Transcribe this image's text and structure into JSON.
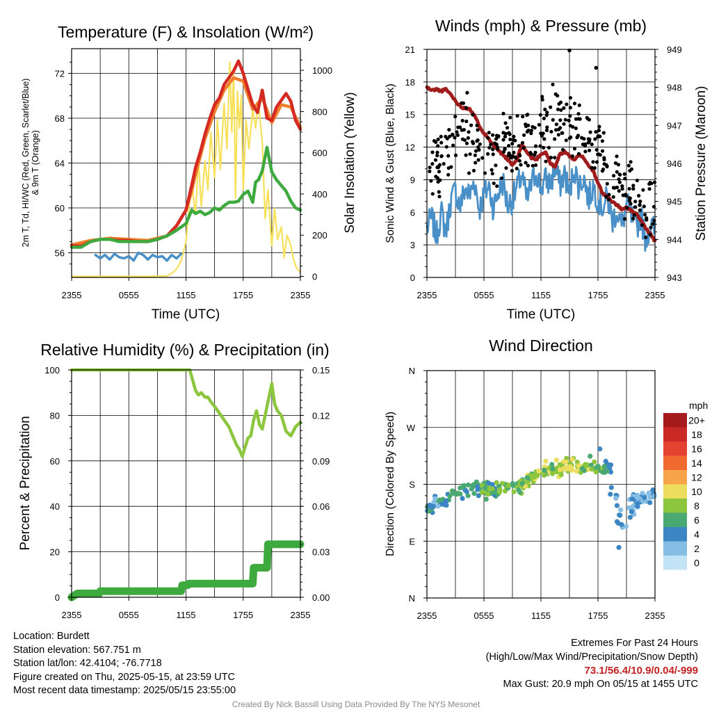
{
  "panels": {
    "temp": {
      "title": "Temperature (F) & Insolation (W/m²)",
      "ylabel_line1": "2m T, Td, HI/WC (Red, Green, Scarlet/Blue)",
      "ylabel_line2": "& 9m T (Orange)",
      "y2label": "Solar Insolation (Yellow)",
      "xlabel": "Time (UTC)"
    },
    "wind": {
      "title": "Winds (mph) & Pressure (mb)",
      "ylabel": "Sonic Wind & Gust (Blue, Black)",
      "y2label": "Station Pressure (Maroon)",
      "xlabel": "Time (UTC)"
    },
    "rh": {
      "title": "Relative Humidity (%) & Precipitation (in)",
      "ylabel": "Percent & Precipitation"
    },
    "dir": {
      "title": "Wind Direction",
      "ylabel": "Direction (Colored By Speed)",
      "legend_title": "mph"
    }
  },
  "footer": {
    "location": "Location: Burdett",
    "elevation": "Station elevation: 567.751 m",
    "latlon": "Station lat/lon: 42.4104; -76.7718",
    "created": "Figure created on Thu, 2025-05-15, at 23:59 UTC",
    "recent": "Most recent data timestamp: 2025/05/15 23:55:00",
    "extremes_title": "Extremes For Past 24 Hours",
    "extremes_sub": "(High/Low/Max Wind/Precipitation/Snow Depth)",
    "extremes_values": "73.1/56.4/10.9/0.04/-999",
    "max_gust": "Max Gust: 20.9 mph On 05/15 at 1455 UTC",
    "credit": "Created By Nick Bassill Using Data Provided By The NYS Mesonet"
  },
  "chart_data": [
    {
      "type": "line",
      "title": "Temperature (F) & Insolation (W/m2)",
      "xlabel": "Time (UTC)",
      "ylabel": "2m T, Td, HI/WC (Red, Green, Scarlet/Blue) & 9m T (Orange)",
      "y2label": "Solar Insolation (Yellow)",
      "x_ticks": [
        "2355",
        "0555",
        "1155",
        "1755",
        "2355"
      ],
      "x_hours": [
        0,
        3,
        6,
        9,
        12,
        15,
        18,
        21,
        24
      ],
      "xlim": [
        0,
        24
      ],
      "ylim": [
        53.8,
        74.2
      ],
      "y_ticks": [
        56,
        60,
        64,
        68,
        72
      ],
      "y2lim": [
        -5,
        1105
      ],
      "y2_ticks": [
        0,
        200,
        400,
        600,
        800,
        1000
      ],
      "series": [
        {
          "name": "2m T",
          "color": "#d42a22",
          "axis": "left",
          "x": [
            0,
            1,
            2,
            3,
            4,
            5,
            6,
            7,
            8,
            9,
            10,
            11,
            12,
            12.6,
            13,
            13.5,
            14,
            14.5,
            15,
            15.5,
            16,
            16.5,
            17,
            17.5,
            18,
            18.5,
            19,
            19.5,
            20,
            20.5,
            21,
            21.5,
            22,
            22.5,
            23,
            23.5,
            24
          ],
          "y": [
            56.6,
            56.6,
            57,
            57.2,
            57.2,
            57.1,
            57.1,
            57,
            57,
            57.2,
            57.5,
            58.4,
            59.8,
            62,
            63.6,
            65,
            66.6,
            68,
            69.2,
            69.8,
            71,
            71.6,
            72.2,
            73.1,
            72,
            70.6,
            69.2,
            68.5,
            70.5,
            68,
            67.8,
            69,
            69.6,
            70.2,
            69.5,
            67.8,
            67
          ]
        },
        {
          "name": "9m T",
          "color": "#f07f2b",
          "axis": "left",
          "x": [
            0,
            2,
            4,
            6,
            8,
            10,
            11,
            12,
            12.6,
            13,
            14,
            15,
            16,
            17,
            18,
            19,
            20,
            21,
            22,
            23,
            24
          ],
          "y": [
            56.7,
            57.1,
            57.3,
            57.2,
            57.1,
            57.5,
            58.4,
            59.8,
            61.5,
            63,
            66.2,
            68.6,
            70.5,
            71.6,
            71.3,
            68.8,
            69.8,
            67.6,
            69.2,
            69,
            67.2
          ]
        },
        {
          "name": "2m Td",
          "color": "#3eaa3e",
          "axis": "left",
          "x": [
            0,
            1,
            2,
            3,
            4,
            5,
            6,
            7,
            8,
            9,
            10,
            11,
            12,
            12.6,
            13,
            13.5,
            14,
            14.5,
            15,
            15.5,
            16,
            16.5,
            17,
            17.5,
            18,
            18.5,
            19,
            19.3,
            19.6,
            20,
            20.5,
            21,
            21.5,
            22,
            22.5,
            23,
            23.5,
            24
          ],
          "y": [
            56.5,
            56.5,
            57,
            57.2,
            57.2,
            57,
            57,
            57,
            57,
            57.2,
            57.5,
            58,
            58.6,
            59.8,
            59.5,
            59.7,
            59.4,
            59.6,
            60,
            59.8,
            60.2,
            60.5,
            60.5,
            60.6,
            61.2,
            61.5,
            60.5,
            62.3,
            62.5,
            63.3,
            65.4,
            63.2,
            62.5,
            62,
            61.5,
            60.6,
            60,
            59.8
          ]
        },
        {
          "name": "HI/WC",
          "color": "#4a90c8",
          "axis": "left",
          "x": [
            2.5,
            3,
            3.5,
            4,
            4.5,
            5,
            5.5,
            6,
            6.5,
            7,
            7.5,
            8,
            8.5,
            9,
            9.5,
            10,
            10.5,
            11,
            11.5
          ],
          "y": [
            55.8,
            55.5,
            55.8,
            55.4,
            55.9,
            55.6,
            55.5,
            55.7,
            55.3,
            56,
            55.8,
            55.4,
            55.8,
            55.6,
            55.7,
            55.3,
            55.8,
            55.5,
            55.9
          ]
        },
        {
          "name": "Insolation",
          "color": "#f7e15a",
          "axis": "right",
          "x": [
            0,
            2,
            4,
            6,
            8,
            10,
            10.5,
            11,
            11.5,
            12,
            12.3,
            12.6,
            13,
            13.3,
            13.6,
            14,
            14.3,
            14.6,
            15,
            15.3,
            15.6,
            16,
            16.3,
            16.6,
            16.8,
            17,
            17.2,
            17.4,
            17.6,
            17.8,
            18,
            18.3,
            18.6,
            19,
            19.3,
            19.6,
            20,
            20.3,
            20.6,
            21,
            21.3,
            21.6,
            22,
            22.3,
            22.6,
            23,
            23.3,
            23.6,
            24
          ],
          "y": [
            0,
            0,
            0,
            0,
            0,
            2,
            15,
            35,
            75,
            170,
            330,
            450,
            300,
            570,
            340,
            560,
            420,
            700,
            480,
            760,
            520,
            840,
            620,
            1040,
            700,
            1010,
            380,
            900,
            720,
            880,
            420,
            760,
            620,
            810,
            720,
            850,
            650,
            280,
            420,
            150,
            330,
            180,
            240,
            90,
            200,
            150,
            80,
            40,
            20
          ]
        }
      ]
    },
    {
      "type": "scatter",
      "title": "Winds (mph) & Pressure (mb)",
      "xlabel": "Time (UTC)",
      "ylabel": "Sonic Wind & Gust (Blue, Black)",
      "y2label": "Station Pressure (Maroon)",
      "x_ticks": [
        "2355",
        "0555",
        "1155",
        "1755",
        "2355"
      ],
      "xlim": [
        0,
        24
      ],
      "ylim": [
        0,
        21
      ],
      "y_ticks": [
        0,
        3,
        6,
        9,
        12,
        15,
        18,
        21
      ],
      "y2lim": [
        943,
        949
      ],
      "y2_ticks": [
        943,
        944,
        945,
        946,
        947,
        948,
        949
      ],
      "series": [
        {
          "name": "Sonic Wind",
          "color": "#4a90c8",
          "axis": "left",
          "x": [
            0,
            0.5,
            1,
            1.5,
            2,
            2.5,
            3,
            3.5,
            4,
            4.5,
            5,
            5.5,
            6,
            6.5,
            7,
            7.5,
            8,
            8.5,
            9,
            9.5,
            10,
            10.5,
            11,
            11.5,
            12,
            12.5,
            13,
            13.5,
            14,
            14.5,
            15,
            15.5,
            16,
            16.5,
            17,
            17.5,
            18,
            18.5,
            19,
            19.5,
            20,
            20.5,
            21,
            21.5,
            22,
            22.5,
            23,
            23.5,
            24
          ],
          "y": [
            4.5,
            5.5,
            3.8,
            6,
            4.2,
            7,
            8,
            6.5,
            8.2,
            7.5,
            9,
            6.3,
            7.5,
            8.5,
            6.4,
            7.8,
            8.8,
            6.6,
            7.2,
            8.2,
            9.5,
            7,
            8.5,
            9.8,
            8.2,
            9,
            8.6,
            10,
            8.5,
            9.6,
            7.6,
            10.2,
            8.3,
            9.3,
            7.2,
            8.4,
            7.2,
            6.5,
            7.3,
            5.2,
            6.2,
            4.6,
            6.8,
            5.6,
            4.4,
            5.8,
            3.5,
            4.8,
            4.3
          ]
        },
        {
          "name": "Pressure",
          "color": "#a01c1c",
          "axis": "right",
          "x": [
            0,
            0.5,
            1,
            1.5,
            2,
            2.5,
            3,
            3.5,
            4,
            4.5,
            5,
            5.5,
            6,
            6.5,
            7,
            7.5,
            8,
            8.5,
            9,
            9.5,
            10,
            10.5,
            11,
            11.5,
            12,
            12.5,
            13,
            13.5,
            14,
            14.5,
            15,
            15.5,
            16,
            16.5,
            17,
            17.5,
            18,
            18.5,
            19,
            19.5,
            20,
            20.5,
            21,
            21.5,
            22,
            22.5,
            23,
            23.5,
            24
          ],
          "y": [
            948.0,
            947.92,
            947.95,
            947.9,
            947.95,
            947.82,
            947.65,
            947.5,
            947.45,
            947.45,
            947.25,
            947.0,
            946.8,
            946.65,
            946.5,
            946.35,
            946.2,
            946.1,
            945.95,
            946.1,
            946.5,
            946.3,
            946.15,
            946.1,
            946.25,
            946.3,
            946.0,
            945.9,
            946.25,
            946.3,
            946.2,
            946.1,
            946.2,
            946.15,
            945.95,
            945.8,
            945.5,
            945.2,
            945.1,
            945.0,
            944.9,
            944.8,
            944.85,
            944.75,
            944.7,
            944.5,
            944.3,
            944.15,
            943.95
          ]
        },
        {
          "name": "Gust",
          "color": "#000000",
          "axis": "left",
          "seed": 17,
          "n": 340,
          "x": [
            0,
            1,
            2,
            3,
            4,
            5,
            6,
            7,
            8,
            9,
            10,
            11,
            12,
            13,
            14,
            15,
            16,
            17,
            18,
            19,
            20,
            21,
            22,
            23,
            24
          ],
          "mean": [
            9.5,
            10.5,
            11,
            13.5,
            13.5,
            12,
            11,
            10.5,
            12,
            12,
            12.5,
            12.5,
            13.5,
            14,
            14.5,
            14.5,
            13.5,
            13,
            12,
            10,
            9,
            8,
            7.5,
            6.5,
            6.5
          ],
          "spread": 2.6
        }
      ],
      "highlights": [
        {
          "x": 15.0,
          "y": 20.9
        },
        {
          "x": 17.8,
          "y": 19.3
        }
      ]
    },
    {
      "type": "line",
      "title": "Relative Humidity (%) & Precipitation (in)",
      "ylabel": "Percent & Precipitation",
      "x_ticks": [
        "2355",
        "0555",
        "1155",
        "1755",
        "2355"
      ],
      "xlim": [
        0,
        24
      ],
      "ylim": [
        0,
        100
      ],
      "y_ticks": [
        0,
        20,
        40,
        60,
        80,
        100
      ],
      "y2lim": [
        0,
        0.15
      ],
      "y2_ticks": [
        "0.00",
        "0.03",
        "0.06",
        "0.09",
        "0.12",
        "0.15"
      ],
      "series": [
        {
          "name": "RH",
          "color": "#8cc63e",
          "axis": "left",
          "x": [
            0,
            2,
            4,
            6,
            8,
            10,
            11,
            12,
            12.4,
            13,
            13.3,
            13.6,
            14,
            14.3,
            14.6,
            15,
            15.5,
            16,
            16.5,
            17,
            17.3,
            17.6,
            17.9,
            18.2,
            18.5,
            18.8,
            19.1,
            19.4,
            19.7,
            20,
            20.3,
            20.6,
            21,
            21.3,
            21.6,
            22,
            22.5,
            23,
            23.5,
            24
          ],
          "y": [
            100,
            100,
            100,
            100,
            100,
            100,
            100,
            100,
            100,
            91,
            89,
            90,
            88,
            88,
            86,
            84,
            81,
            78,
            75,
            70,
            67,
            65,
            62,
            66,
            70,
            71,
            78,
            82,
            76,
            74,
            80,
            86,
            94,
            85,
            82,
            80,
            73,
            71,
            75,
            77
          ]
        },
        {
          "name": "Precipitation",
          "color": "#3eaa3e",
          "axis": "right",
          "x": [
            0,
            0.6,
            2.9,
            3.0,
            11.5,
            11.6,
            12.2,
            12.3,
            19.0,
            19.1,
            20.5,
            20.6,
            24
          ],
          "y": [
            0.0,
            0.0025,
            0.0025,
            0.004,
            0.004,
            0.008,
            0.008,
            0.009,
            0.009,
            0.0195,
            0.0195,
            0.035,
            0.035
          ]
        }
      ]
    },
    {
      "type": "scatter",
      "title": "Wind Direction",
      "ylabel": "Direction (Colored By Speed)",
      "x_ticks": [
        "2355",
        "0555",
        "1155",
        "1755",
        "2355"
      ],
      "xlim": [
        0,
        24
      ],
      "y_ticks": [
        "N",
        "E",
        "S",
        "W",
        "N"
      ],
      "ylim": [
        0,
        360
      ],
      "legend": {
        "title": "mph",
        "labels": [
          "20+",
          "18",
          "16",
          "14",
          "12",
          "10",
          "8",
          "6",
          "4",
          "2",
          "0"
        ],
        "colors": [
          "#a51b1b",
          "#c92a26",
          "#e34330",
          "#f06a2f",
          "#f8a44b",
          "#eddd5e",
          "#8cc63e",
          "#4aa872",
          "#3b86c2",
          "#85bde5",
          "#c2e2f5"
        ]
      },
      "series": [
        {
          "name": "Direction",
          "seed": 29,
          "n": 300,
          "x": [
            0,
            1,
            2,
            3,
            4,
            5,
            6,
            7,
            8,
            9,
            10,
            11,
            12,
            13,
            14,
            15,
            16,
            17,
            18,
            19,
            19.8,
            20.5,
            21,
            22,
            23,
            24
          ],
          "mean": [
            140,
            148,
            158,
            165,
            170,
            172,
            172,
            170,
            172,
            175,
            178,
            190,
            200,
            205,
            205,
            210,
            208,
            210,
            208,
            205,
            150,
            110,
            135,
            150,
            160,
            165
          ],
          "spread": 9,
          "speed_mean": [
            4,
            4,
            5,
            6,
            6,
            6,
            6,
            6,
            7,
            7,
            7,
            8,
            8,
            8,
            9,
            9,
            8,
            8,
            7,
            5,
            3,
            3,
            3,
            3,
            3,
            3
          ]
        }
      ],
      "highlights": [
        {
          "x": 18.2,
          "y": 236,
          "speed": 4
        },
        {
          "x": 20.2,
          "y": 80,
          "speed": 3
        }
      ]
    }
  ]
}
